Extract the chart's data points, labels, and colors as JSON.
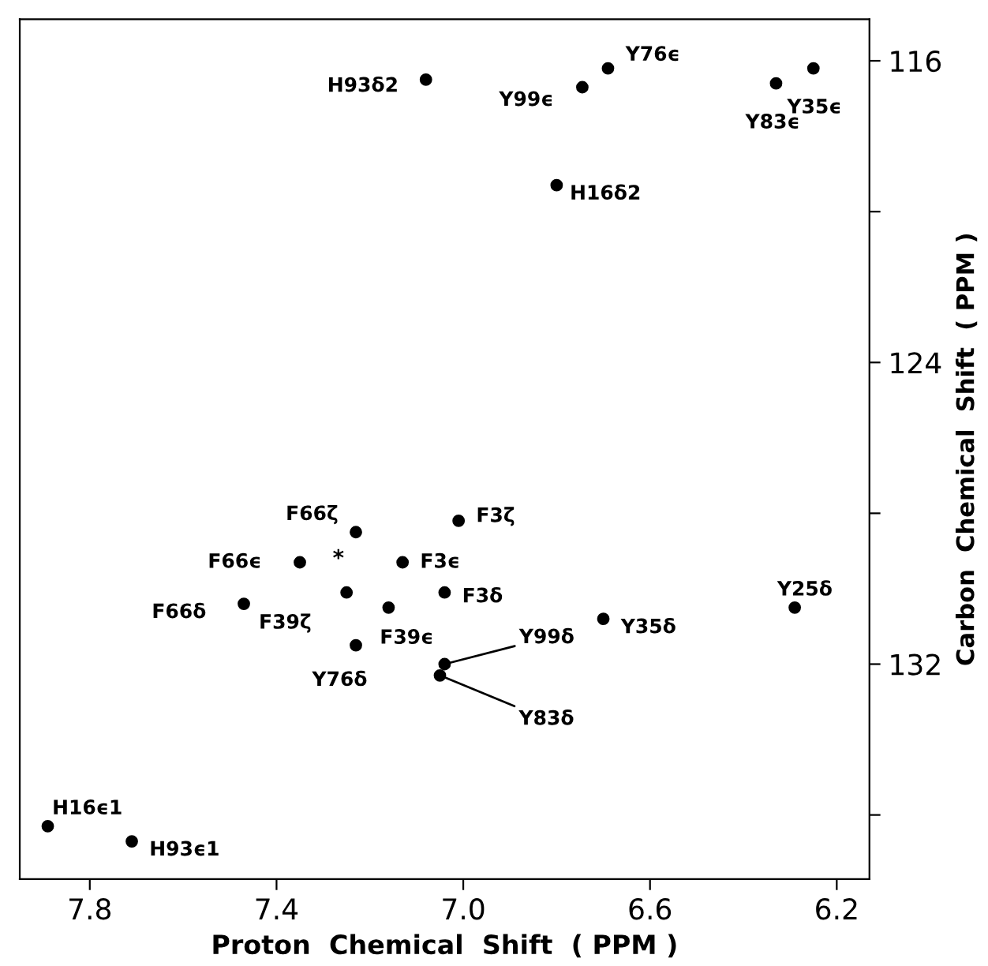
{
  "chart_data": {
    "type": "scatter",
    "xlabel": "Proton  Chemical  Shift  ( PPM )",
    "ylabel": "Carbon  Chemical  Shift  ( PPM )",
    "x": [
      7.08,
      6.745,
      6.69,
      6.33,
      6.25,
      6.8,
      7.23,
      7.01,
      7.35,
      7.13,
      7.25,
      7.04,
      7.47,
      7.16,
      6.7,
      6.29,
      7.23,
      7.04,
      7.05,
      7.89,
      7.71
    ],
    "series": [
      {
        "color": "#000000",
        "values": [
          116.5,
          116.7,
          116.2,
          116.6,
          116.2,
          119.3,
          128.5,
          128.2,
          129.3,
          129.3,
          130.1,
          130.1,
          130.4,
          130.5,
          130.8,
          130.5,
          131.5,
          132.0,
          132.3,
          136.3,
          136.7
        ]
      }
    ],
    "marker": "circle",
    "grid": false,
    "legend": false,
    "xlim": [
      7.95,
      6.13
    ],
    "xticks": [
      7.8,
      7.4,
      {
        "value": 7.0,
        "label": "7.0"
      },
      6.6,
      6.2
    ],
    "ylim": [
      137.7,
      114.9
    ],
    "yticks": [
      116,
      {
        "value": 120,
        "label": null
      },
      124,
      {
        "value": 128,
        "label": null
      },
      132,
      {
        "value": 136,
        "label": null
      }
    ],
    "annotations": [
      {
        "text": "H93δ2",
        "x": 7.08,
        "y": 116.5
      },
      {
        "text": "Y99ϵ",
        "x": 6.745,
        "y": 116.7
      },
      {
        "text": "Y76ϵ",
        "x": 6.69,
        "y": 116.2
      },
      {
        "text": "Y83ϵ",
        "x": 6.33,
        "y": 116.6
      },
      {
        "text": "Y35ϵ",
        "x": 6.25,
        "y": 116.2
      },
      {
        "text": "H16δ2",
        "x": 6.8,
        "y": 119.3
      },
      {
        "text": "F66ζ",
        "x": 7.23,
        "y": 128.5
      },
      {
        "text": "F3ζ",
        "x": 7.01,
        "y": 128.2
      },
      {
        "text": "F66ϵ",
        "x": 7.35,
        "y": 129.3
      },
      {
        "text": "F3ϵ",
        "x": 7.13,
        "y": 129.3
      },
      {
        "text": "F39ζ",
        "x": 7.25,
        "y": 130.1
      },
      {
        "text": "F3δ",
        "x": 7.04,
        "y": 130.1
      },
      {
        "text": "F66δ",
        "x": 7.47,
        "y": 130.4
      },
      {
        "text": "F39ϵ",
        "x": 7.16,
        "y": 130.5
      },
      {
        "text": "Y35δ",
        "x": 6.7,
        "y": 130.8
      },
      {
        "text": "Y25δ",
        "x": 6.29,
        "y": 130.5
      },
      {
        "text": "Y76δ",
        "x": 7.23,
        "y": 131.5
      },
      {
        "text": "Y99δ",
        "x": 7.04,
        "y": 132.0
      },
      {
        "text": "Y83δ",
        "x": 7.05,
        "y": 132.3
      },
      {
        "text": "H16ϵ1",
        "x": 7.89,
        "y": 136.3
      },
      {
        "text": "H93ϵ1",
        "x": 7.71,
        "y": 136.7
      },
      "*"
    ]
  }
}
